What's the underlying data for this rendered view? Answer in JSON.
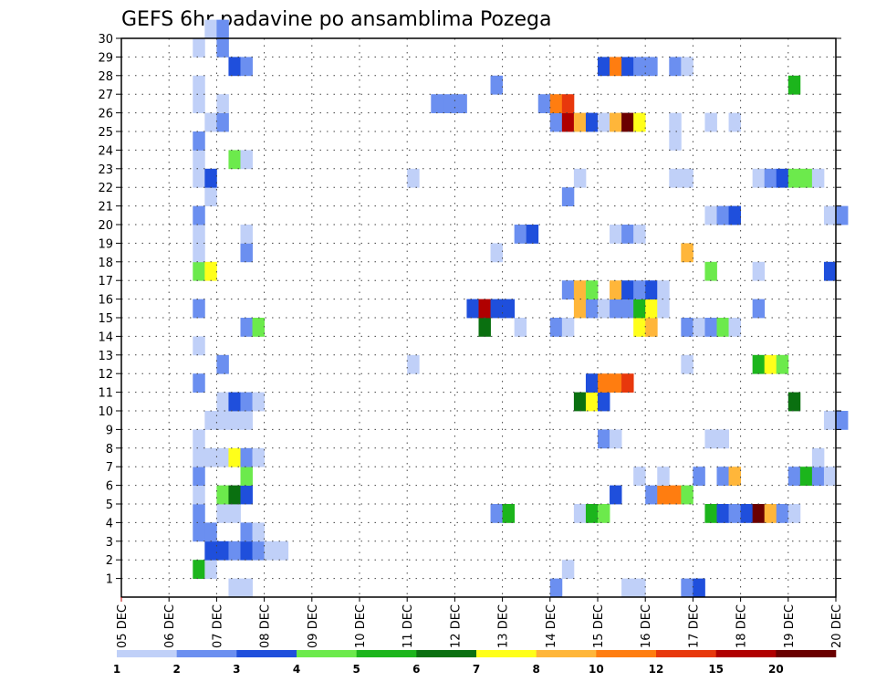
{
  "chart_data": {
    "type": "heatmap",
    "title": "GEFS 6hr padavine po ansamblima Pozega",
    "xlabel": "",
    "ylabel": "",
    "x_ticks": [
      "05 DEC",
      "06 DEC",
      "07 DEC",
      "08 DEC",
      "09 DEC",
      "10 DEC",
      "11 DEC",
      "12 DEC",
      "13 DEC",
      "14 DEC",
      "15 DEC",
      "16 DEC",
      "17 DEC",
      "18 DEC",
      "19 DEC",
      "20 DEC"
    ],
    "y_ticks": [
      "1",
      "2",
      "3",
      "4",
      "5",
      "6",
      "7",
      "8",
      "9",
      "10",
      "11",
      "12",
      "13",
      "14",
      "15",
      "16",
      "17",
      "18",
      "19",
      "20",
      "21",
      "22",
      "23",
      "24",
      "25",
      "26",
      "27",
      "28",
      "29",
      "30"
    ],
    "y_range": [
      0,
      30
    ],
    "steps_per_day": 4,
    "grid": true,
    "legend": {
      "placement": "bottom",
      "colors": [
        "#c0d0f8",
        "#6b8ff0",
        "#1f4fdc",
        "#6cea4c",
        "#1cb51c",
        "#0a7010",
        "#ffff1a",
        "#ffb63a",
        "#ff7d10",
        "#e8380c",
        "#b00000",
        "#6a0000"
      ],
      "labels": [
        "1",
        "2",
        "3",
        "4",
        "5",
        "6",
        "7",
        "8",
        "10",
        "12",
        "15",
        "20"
      ]
    },
    "cells": [
      {
        "m": 0,
        "t": 9,
        "c": 1
      },
      {
        "m": 0,
        "t": 10,
        "c": 1
      },
      {
        "m": 0,
        "t": 36,
        "c": 2
      },
      {
        "m": 0,
        "t": 42,
        "c": 1
      },
      {
        "m": 0,
        "t": 43,
        "c": 1
      },
      {
        "m": 0,
        "t": 47,
        "c": 2
      },
      {
        "m": 0,
        "t": 48,
        "c": 3
      },
      {
        "m": 1,
        "t": 6,
        "c": 5
      },
      {
        "m": 1,
        "t": 7,
        "c": 1
      },
      {
        "m": 1,
        "t": 37,
        "c": 1
      },
      {
        "m": 2,
        "t": 7,
        "c": 3
      },
      {
        "m": 2,
        "t": 8,
        "c": 3
      },
      {
        "m": 2,
        "t": 9,
        "c": 2
      },
      {
        "m": 2,
        "t": 10,
        "c": 3
      },
      {
        "m": 2,
        "t": 11,
        "c": 2
      },
      {
        "m": 2,
        "t": 12,
        "c": 1
      },
      {
        "m": 2,
        "t": 13,
        "c": 1
      },
      {
        "m": 3,
        "t": 6,
        "c": 2
      },
      {
        "m": 3,
        "t": 7,
        "c": 2
      },
      {
        "m": 3,
        "t": 10,
        "c": 2
      },
      {
        "m": 3,
        "t": 11,
        "c": 1
      },
      {
        "m": 4,
        "t": 6,
        "c": 2
      },
      {
        "m": 4,
        "t": 8,
        "c": 1
      },
      {
        "m": 4,
        "t": 9,
        "c": 1
      },
      {
        "m": 4,
        "t": 31,
        "c": 2
      },
      {
        "m": 4,
        "t": 32,
        "c": 5
      },
      {
        "m": 4,
        "t": 38,
        "c": 1
      },
      {
        "m": 4,
        "t": 39,
        "c": 5
      },
      {
        "m": 4,
        "t": 40,
        "c": 4
      },
      {
        "m": 4,
        "t": 49,
        "c": 5
      },
      {
        "m": 4,
        "t": 50,
        "c": 3
      },
      {
        "m": 4,
        "t": 51,
        "c": 2
      },
      {
        "m": 4,
        "t": 52,
        "c": 3
      },
      {
        "m": 4,
        "t": 53,
        "c": 12
      },
      {
        "m": 4,
        "t": 54,
        "c": 8
      },
      {
        "m": 4,
        "t": 55,
        "c": 2
      },
      {
        "m": 4,
        "t": 56,
        "c": 1
      },
      {
        "m": 5,
        "t": 6,
        "c": 1
      },
      {
        "m": 5,
        "t": 8,
        "c": 4
      },
      {
        "m": 5,
        "t": 9,
        "c": 6
      },
      {
        "m": 5,
        "t": 10,
        "c": 3
      },
      {
        "m": 5,
        "t": 41,
        "c": 3
      },
      {
        "m": 5,
        "t": 44,
        "c": 2
      },
      {
        "m": 5,
        "t": 45,
        "c": 9
      },
      {
        "m": 5,
        "t": 46,
        "c": 9
      },
      {
        "m": 5,
        "t": 47,
        "c": 4
      },
      {
        "m": 6,
        "t": 6,
        "c": 2
      },
      {
        "m": 6,
        "t": 10,
        "c": 4
      },
      {
        "m": 6,
        "t": 43,
        "c": 1
      },
      {
        "m": 6,
        "t": 45,
        "c": 1
      },
      {
        "m": 6,
        "t": 48,
        "c": 2
      },
      {
        "m": 6,
        "t": 50,
        "c": 2
      },
      {
        "m": 6,
        "t": 51,
        "c": 8
      },
      {
        "m": 6,
        "t": 56,
        "c": 2
      },
      {
        "m": 6,
        "t": 57,
        "c": 5
      },
      {
        "m": 6,
        "t": 58,
        "c": 2
      },
      {
        "m": 6,
        "t": 59,
        "c": 1
      },
      {
        "m": 7,
        "t": 6,
        "c": 1
      },
      {
        "m": 7,
        "t": 7,
        "c": 1
      },
      {
        "m": 7,
        "t": 8,
        "c": 1
      },
      {
        "m": 7,
        "t": 9,
        "c": 7
      },
      {
        "m": 7,
        "t": 10,
        "c": 2
      },
      {
        "m": 7,
        "t": 11,
        "c": 1
      },
      {
        "m": 7,
        "t": 58,
        "c": 1
      },
      {
        "m": 8,
        "t": 6,
        "c": 1
      },
      {
        "m": 8,
        "t": 40,
        "c": 2
      },
      {
        "m": 8,
        "t": 41,
        "c": 1
      },
      {
        "m": 8,
        "t": 49,
        "c": 1
      },
      {
        "m": 8,
        "t": 50,
        "c": 1
      },
      {
        "m": 9,
        "t": 7,
        "c": 1
      },
      {
        "m": 9,
        "t": 8,
        "c": 1
      },
      {
        "m": 9,
        "t": 9,
        "c": 1
      },
      {
        "m": 9,
        "t": 10,
        "c": 1
      },
      {
        "m": 9,
        "t": 59,
        "c": 1
      },
      {
        "m": 9,
        "t": 60,
        "c": 2
      },
      {
        "m": 10,
        "t": 8,
        "c": 1
      },
      {
        "m": 10,
        "t": 9,
        "c": 3
      },
      {
        "m": 10,
        "t": 10,
        "c": 2
      },
      {
        "m": 10,
        "t": 11,
        "c": 1
      },
      {
        "m": 10,
        "t": 38,
        "c": 6
      },
      {
        "m": 10,
        "t": 39,
        "c": 7
      },
      {
        "m": 10,
        "t": 40,
        "c": 3
      },
      {
        "m": 10,
        "t": 56,
        "c": 6
      },
      {
        "m": 11,
        "t": 6,
        "c": 2
      },
      {
        "m": 11,
        "t": 39,
        "c": 3
      },
      {
        "m": 11,
        "t": 40,
        "c": 9
      },
      {
        "m": 11,
        "t": 41,
        "c": 9
      },
      {
        "m": 11,
        "t": 42,
        "c": 10
      },
      {
        "m": 12,
        "t": 8,
        "c": 2
      },
      {
        "m": 12,
        "t": 24,
        "c": 1
      },
      {
        "m": 12,
        "t": 47,
        "c": 1
      },
      {
        "m": 12,
        "t": 53,
        "c": 5
      },
      {
        "m": 12,
        "t": 54,
        "c": 7
      },
      {
        "m": 12,
        "t": 55,
        "c": 4
      },
      {
        "m": 13,
        "t": 6,
        "c": 1
      },
      {
        "m": 14,
        "t": 10,
        "c": 2
      },
      {
        "m": 14,
        "t": 11,
        "c": 4
      },
      {
        "m": 14,
        "t": 30,
        "c": 6
      },
      {
        "m": 14,
        "t": 33,
        "c": 1
      },
      {
        "m": 14,
        "t": 36,
        "c": 2
      },
      {
        "m": 14,
        "t": 37,
        "c": 1
      },
      {
        "m": 14,
        "t": 43,
        "c": 7
      },
      {
        "m": 14,
        "t": 44,
        "c": 8
      },
      {
        "m": 14,
        "t": 47,
        "c": 2
      },
      {
        "m": 14,
        "t": 48,
        "c": 1
      },
      {
        "m": 14,
        "t": 49,
        "c": 2
      },
      {
        "m": 14,
        "t": 50,
        "c": 4
      },
      {
        "m": 14,
        "t": 51,
        "c": 1
      },
      {
        "m": 15,
        "t": 6,
        "c": 2
      },
      {
        "m": 15,
        "t": 29,
        "c": 3
      },
      {
        "m": 15,
        "t": 30,
        "c": 11
      },
      {
        "m": 15,
        "t": 31,
        "c": 3
      },
      {
        "m": 15,
        "t": 32,
        "c": 3
      },
      {
        "m": 15,
        "t": 38,
        "c": 8
      },
      {
        "m": 15,
        "t": 39,
        "c": 2
      },
      {
        "m": 15,
        "t": 40,
        "c": 1
      },
      {
        "m": 15,
        "t": 41,
        "c": 2
      },
      {
        "m": 15,
        "t": 42,
        "c": 2
      },
      {
        "m": 15,
        "t": 43,
        "c": 5
      },
      {
        "m": 15,
        "t": 44,
        "c": 7
      },
      {
        "m": 15,
        "t": 45,
        "c": 1
      },
      {
        "m": 15,
        "t": 53,
        "c": 2
      },
      {
        "m": 16,
        "t": 37,
        "c": 2
      },
      {
        "m": 16,
        "t": 38,
        "c": 8
      },
      {
        "m": 16,
        "t": 39,
        "c": 4
      },
      {
        "m": 16,
        "t": 41,
        "c": 8
      },
      {
        "m": 16,
        "t": 42,
        "c": 3
      },
      {
        "m": 16,
        "t": 43,
        "c": 2
      },
      {
        "m": 16,
        "t": 44,
        "c": 3
      },
      {
        "m": 16,
        "t": 45,
        "c": 1
      },
      {
        "m": 17,
        "t": 6,
        "c": 4
      },
      {
        "m": 17,
        "t": 7,
        "c": 7
      },
      {
        "m": 17,
        "t": 49,
        "c": 4
      },
      {
        "m": 17,
        "t": 53,
        "c": 1
      },
      {
        "m": 17,
        "t": 59,
        "c": 3
      },
      {
        "m": 18,
        "t": 6,
        "c": 1
      },
      {
        "m": 18,
        "t": 10,
        "c": 2
      },
      {
        "m": 18,
        "t": 31,
        "c": 1
      },
      {
        "m": 18,
        "t": 47,
        "c": 8
      },
      {
        "m": 19,
        "t": 6,
        "c": 1
      },
      {
        "m": 19,
        "t": 10,
        "c": 1
      },
      {
        "m": 19,
        "t": 33,
        "c": 2
      },
      {
        "m": 19,
        "t": 34,
        "c": 3
      },
      {
        "m": 19,
        "t": 41,
        "c": 1
      },
      {
        "m": 19,
        "t": 42,
        "c": 2
      },
      {
        "m": 19,
        "t": 43,
        "c": 1
      },
      {
        "m": 20,
        "t": 6,
        "c": 2
      },
      {
        "m": 20,
        "t": 49,
        "c": 1
      },
      {
        "m": 20,
        "t": 50,
        "c": 2
      },
      {
        "m": 20,
        "t": 51,
        "c": 3
      },
      {
        "m": 20,
        "t": 59,
        "c": 1
      },
      {
        "m": 20,
        "t": 60,
        "c": 2
      },
      {
        "m": 21,
        "t": 7,
        "c": 1
      },
      {
        "m": 21,
        "t": 37,
        "c": 2
      },
      {
        "m": 22,
        "t": 6,
        "c": 1
      },
      {
        "m": 22,
        "t": 7,
        "c": 3
      },
      {
        "m": 22,
        "t": 24,
        "c": 1
      },
      {
        "m": 22,
        "t": 38,
        "c": 1
      },
      {
        "m": 22,
        "t": 46,
        "c": 1
      },
      {
        "m": 22,
        "t": 47,
        "c": 1
      },
      {
        "m": 22,
        "t": 53,
        "c": 1
      },
      {
        "m": 22,
        "t": 54,
        "c": 2
      },
      {
        "m": 22,
        "t": 55,
        "c": 3
      },
      {
        "m": 22,
        "t": 56,
        "c": 4
      },
      {
        "m": 22,
        "t": 57,
        "c": 4
      },
      {
        "m": 22,
        "t": 58,
        "c": 1
      },
      {
        "m": 23,
        "t": 6,
        "c": 1
      },
      {
        "m": 23,
        "t": 9,
        "c": 4
      },
      {
        "m": 23,
        "t": 10,
        "c": 1
      },
      {
        "m": 24,
        "t": 6,
        "c": 2
      },
      {
        "m": 24,
        "t": 46,
        "c": 1
      },
      {
        "m": 25,
        "t": 7,
        "c": 1
      },
      {
        "m": 25,
        "t": 8,
        "c": 2
      },
      {
        "m": 25,
        "t": 36,
        "c": 2
      },
      {
        "m": 25,
        "t": 37,
        "c": 11
      },
      {
        "m": 25,
        "t": 38,
        "c": 8
      },
      {
        "m": 25,
        "t": 39,
        "c": 3
      },
      {
        "m": 25,
        "t": 40,
        "c": 1
      },
      {
        "m": 25,
        "t": 41,
        "c": 8
      },
      {
        "m": 25,
        "t": 42,
        "c": 12
      },
      {
        "m": 25,
        "t": 43,
        "c": 7
      },
      {
        "m": 25,
        "t": 46,
        "c": 1
      },
      {
        "m": 25,
        "t": 49,
        "c": 1
      },
      {
        "m": 25,
        "t": 51,
        "c": 1
      },
      {
        "m": 26,
        "t": 6,
        "c": 1
      },
      {
        "m": 26,
        "t": 8,
        "c": 1
      },
      {
        "m": 26,
        "t": 26,
        "c": 2
      },
      {
        "m": 26,
        "t": 27,
        "c": 2
      },
      {
        "m": 26,
        "t": 28,
        "c": 2
      },
      {
        "m": 26,
        "t": 35,
        "c": 2
      },
      {
        "m": 26,
        "t": 36,
        "c": 9
      },
      {
        "m": 26,
        "t": 37,
        "c": 10
      },
      {
        "m": 27,
        "t": 6,
        "c": 1
      },
      {
        "m": 27,
        "t": 31,
        "c": 2
      },
      {
        "m": 27,
        "t": 56,
        "c": 5
      },
      {
        "m": 28,
        "t": 9,
        "c": 3
      },
      {
        "m": 28,
        "t": 10,
        "c": 2
      },
      {
        "m": 28,
        "t": 40,
        "c": 3
      },
      {
        "m": 28,
        "t": 41,
        "c": 9
      },
      {
        "m": 28,
        "t": 42,
        "c": 3
      },
      {
        "m": 28,
        "t": 43,
        "c": 2
      },
      {
        "m": 28,
        "t": 44,
        "c": 2
      },
      {
        "m": 28,
        "t": 46,
        "c": 2
      },
      {
        "m": 28,
        "t": 47,
        "c": 1
      },
      {
        "m": 29,
        "t": 6,
        "c": 1
      },
      {
        "m": 29,
        "t": 8,
        "c": 2
      },
      {
        "m": 30,
        "t": 7,
        "c": 1
      },
      {
        "m": 30,
        "t": 8,
        "c": 2
      }
    ]
  }
}
